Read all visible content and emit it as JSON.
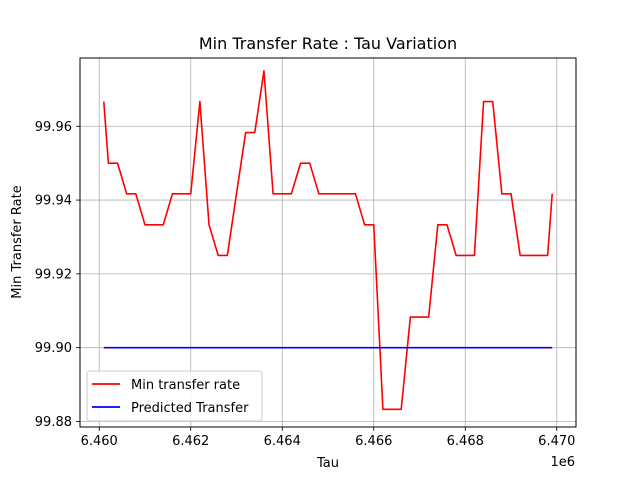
{
  "chart_data": {
    "type": "line",
    "title": "Min Transfer Rate : Tau Variation",
    "xlabel": "Tau",
    "ylabel": "Min Transfer Rate",
    "x_offset_label": "1e6",
    "xlim": [
      6459580,
      6470420
    ],
    "ylim": [
      99.8785,
      99.9785
    ],
    "xticks": [
      6460000,
      6462000,
      6464000,
      6466000,
      6468000,
      6470000
    ],
    "xtick_labels": [
      "6.460",
      "6.462",
      "6.464",
      "6.466",
      "6.468",
      "6.470"
    ],
    "yticks": [
      99.88,
      99.9,
      99.92,
      99.94,
      99.96
    ],
    "ytick_labels": [
      "99.88",
      "99.90",
      "99.92",
      "99.94",
      "99.96"
    ],
    "grid": true,
    "legend_position": "lower-left",
    "series": [
      {
        "name": "Min transfer rate",
        "color": "#ff0000",
        "x": [
          6460100,
          6460200,
          6460400,
          6460600,
          6460800,
          6461000,
          6461200,
          6461400,
          6461600,
          6461800,
          6462000,
          6462200,
          6462400,
          6462600,
          6462800,
          6463000,
          6463200,
          6463400,
          6463600,
          6463800,
          6464000,
          6464200,
          6464400,
          6464600,
          6464800,
          6465000,
          6465200,
          6465400,
          6465600,
          6465800,
          6466000,
          6466200,
          6466400,
          6466600,
          6466800,
          6467000,
          6467200,
          6467400,
          6467600,
          6467800,
          6468000,
          6468200,
          6468400,
          6468600,
          6468800,
          6469000,
          6469200,
          6469400,
          6469600,
          6469800,
          6469900
        ],
        "values": [
          99.9667,
          99.95,
          99.95,
          99.9417,
          99.9417,
          99.9333,
          99.9333,
          99.9333,
          99.9417,
          99.9417,
          99.9417,
          99.9667,
          99.9333,
          99.925,
          99.925,
          99.9417,
          99.9583,
          99.9583,
          99.975,
          99.9417,
          99.9417,
          99.9417,
          99.95,
          99.95,
          99.9417,
          99.9417,
          99.9417,
          99.9417,
          99.9417,
          99.9333,
          99.9333,
          99.8833,
          99.8833,
          99.8833,
          99.9083,
          99.9083,
          99.9083,
          99.9333,
          99.9333,
          99.925,
          99.925,
          99.925,
          99.9667,
          99.9667,
          99.9417,
          99.9417,
          99.925,
          99.925,
          99.925,
          99.925,
          99.9417
        ]
      },
      {
        "name": "Predicted Transfer",
        "color": "#0000ff",
        "x": [
          6460100,
          6469900
        ],
        "values": [
          99.9,
          99.9
        ]
      }
    ]
  }
}
